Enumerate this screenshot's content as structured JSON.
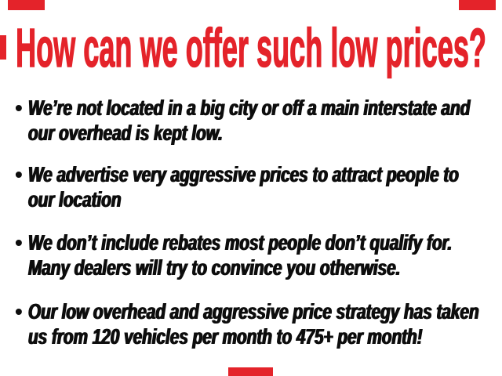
{
  "colors": {
    "accent": "#e4232a",
    "ink": "#0d0d0d"
  },
  "title": "How can we offer such low prices?",
  "bullet_marker": "•",
  "bullets": [
    {
      "line1": "We’re not located in a big city or off a main interstate and",
      "line2": "our overhead is kept low."
    },
    {
      "line1": "We advertise very aggressive prices to attract people to",
      "line2": "our location"
    },
    {
      "line1": "We don’t include rebates most people don’t qualify for.",
      "line2": "Many dealers will try to convince you otherwise."
    },
    {
      "line1": "Our low overhead and aggressive price strategy has taken",
      "line2": "us from 120 vehicles per month to 475+ per month!"
    }
  ]
}
